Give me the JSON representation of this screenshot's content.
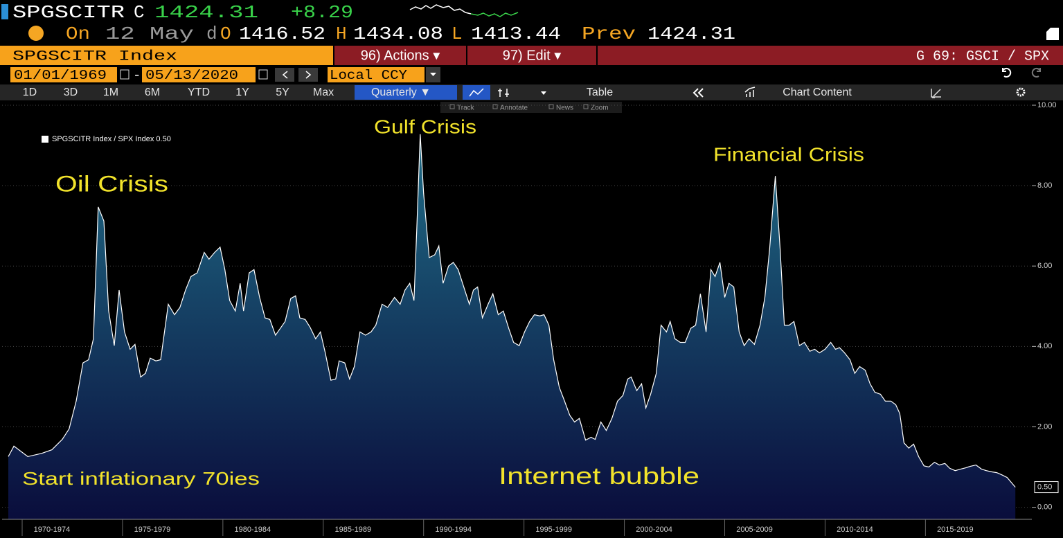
{
  "ui": {
    "ticker": "SPGSCITR",
    "c": "C",
    "last": "1424.31",
    "change": "+8.29",
    "quote": {
      "on": "On",
      "date": "12 May",
      "d": "d",
      "o_label": "O",
      "open": "1416.52",
      "h_label": "H",
      "high": "1434.08",
      "l_label": "L",
      "low": "1413.44",
      "prev_label": "Prev",
      "prev": "1424.31"
    },
    "security": "SPGSCITR Index",
    "actions": "96) Actions ▾",
    "edit": "97) Edit ▾",
    "chart_id": "G 69: GSCI / SPX",
    "start_date": "01/01/1969",
    "dash": "-",
    "end_date": "05/13/2020",
    "currency": "Local CCY",
    "periods": [
      "1D",
      "3D",
      "1M",
      "6M",
      "YTD",
      "1Y",
      "5Y",
      "Max"
    ],
    "frequency": "Quarterly ▼",
    "table": "Table",
    "chart_content": "Chart Content",
    "tools": [
      "Track",
      "Annotate",
      "News",
      "Zoom"
    ]
  },
  "chart_data": {
    "type": "area",
    "annotations": [
      "Oil Crisis",
      "Gulf Crisis",
      "Financial Crisis",
      "Start inflationary 70ies",
      "Internet bubble"
    ],
    "x": [
      1969.31,
      1969.59,
      1970.28,
      1970.97,
      1971.48,
      1972.0,
      1972.34,
      1972.69,
      1973.03,
      1973.31,
      1973.55,
      1973.79,
      1974.07,
      1974.31,
      1974.59,
      1974.83,
      1975.1,
      1975.38,
      1975.62,
      1975.9,
      1976.14,
      1976.38,
      1976.66,
      1976.9,
      1977.28,
      1977.59,
      1977.86,
      1978.14,
      1978.41,
      1978.72,
      1979.07,
      1979.31,
      1979.59,
      1979.86,
      1980.1,
      1980.34,
      1980.62,
      1980.86,
      1981.03,
      1981.31,
      1981.55,
      1981.83,
      1982.1,
      1982.34,
      1982.62,
      1982.86,
      1983.1,
      1983.38,
      1983.62,
      1983.83,
      1984.1,
      1984.34,
      1984.62,
      1984.86,
      1985.1,
      1985.38,
      1985.62,
      1985.79,
      1986.07,
      1986.31,
      1986.55,
      1986.83,
      1987.1,
      1987.38,
      1987.62,
      1987.93,
      1988.21,
      1988.55,
      1988.83,
      1989.07,
      1989.31,
      1989.52,
      1989.66,
      1989.83,
      1990.0,
      1990.28,
      1990.55,
      1990.76,
      1990.97,
      1991.24,
      1991.48,
      1991.72,
      1992.0,
      1992.28,
      1992.48,
      1992.69,
      1992.93,
      1993.21,
      1993.45,
      1993.72,
      1993.97,
      1994.24,
      1994.48,
      1994.76,
      1995.03,
      1995.28,
      1995.52,
      1995.79,
      1996.0,
      1996.24,
      1996.48,
      1996.76,
      1997.0,
      1997.28,
      1997.52,
      1997.76,
      1998.07,
      1998.34,
      1998.55,
      1998.83,
      1999.1,
      1999.38,
      1999.66,
      1999.93,
      2000.17,
      2000.34,
      2000.62,
      2000.86,
      2001.07,
      2001.31,
      2001.59,
      2001.83,
      2002.1,
      2002.28,
      2002.52,
      2002.79,
      2003.03,
      2003.31,
      2003.55,
      2003.79,
      2004.07,
      2004.31,
      2004.52,
      2004.76,
      2005.0,
      2005.21,
      2005.45,
      2005.72,
      2005.97,
      2006.21,
      2006.48,
      2006.76,
      2007.0,
      2007.24,
      2007.52,
      2007.76,
      2007.97,
      2008.21,
      2008.45,
      2008.72,
      2008.97,
      2009.24,
      2009.48,
      2009.72,
      2010.0,
      2010.28,
      2010.52,
      2010.72,
      2010.97,
      2011.24,
      2011.48,
      2011.72,
      2012.0,
      2012.24,
      2012.48,
      2012.76,
      2013.0,
      2013.28,
      2013.52,
      2013.72,
      2013.93,
      2014.17,
      2014.41,
      2014.66,
      2014.93,
      2015.17,
      2015.45,
      2015.69,
      2015.97,
      2016.21,
      2016.48,
      2016.76,
      2017.0,
      2017.24,
      2017.52,
      2017.79,
      2018.03,
      2018.31,
      2018.55,
      2018.79,
      2019.07,
      2019.48
    ],
    "series": [
      {
        "name": "SPGSCITR Index / SPX Index 0.50",
        "color": "#ffffff",
        "fill_top": "#1f6c86",
        "fill_bottom": "#0a0d3c",
        "values": [
          1.26,
          1.52,
          1.26,
          1.34,
          1.43,
          1.69,
          1.95,
          2.64,
          3.59,
          3.67,
          4.19,
          7.47,
          7.12,
          4.88,
          4.02,
          5.4,
          4.36,
          3.93,
          4.05,
          3.24,
          3.33,
          3.71,
          3.64,
          3.67,
          5.05,
          4.79,
          4.97,
          5.4,
          5.74,
          5.83,
          6.34,
          6.17,
          6.34,
          6.47,
          5.91,
          5.14,
          4.88,
          5.57,
          4.88,
          5.83,
          5.91,
          5.22,
          4.71,
          4.67,
          4.28,
          4.45,
          4.62,
          5.19,
          5.26,
          4.71,
          4.67,
          4.48,
          4.19,
          4.36,
          3.84,
          3.16,
          3.19,
          3.64,
          3.59,
          3.19,
          3.5,
          4.36,
          4.28,
          4.36,
          4.53,
          5.05,
          4.97,
          5.22,
          5.05,
          5.4,
          5.57,
          5.14,
          6.95,
          9.28,
          7.81,
          6.21,
          6.28,
          6.5,
          5.57,
          6.0,
          6.09,
          5.91,
          5.48,
          5.05,
          5.4,
          5.48,
          4.71,
          5.05,
          5.31,
          4.79,
          4.88,
          4.45,
          4.1,
          4.02,
          4.36,
          4.62,
          4.79,
          4.76,
          4.79,
          4.53,
          3.67,
          2.98,
          2.67,
          2.29,
          2.12,
          2.21,
          1.67,
          1.74,
          1.69,
          2.12,
          1.91,
          2.21,
          2.64,
          2.78,
          3.19,
          3.24,
          2.9,
          3.07,
          2.47,
          2.81,
          3.33,
          4.53,
          4.36,
          4.62,
          4.19,
          4.1,
          4.1,
          4.45,
          4.53,
          5.31,
          4.36,
          5.91,
          5.74,
          6.09,
          5.22,
          5.57,
          5.48,
          4.36,
          4.02,
          4.19,
          4.05,
          4.53,
          5.22,
          6.43,
          8.24,
          6.43,
          4.53,
          4.53,
          4.62,
          4.02,
          4.1,
          3.88,
          3.93,
          3.84,
          3.93,
          4.1,
          3.93,
          3.97,
          3.84,
          3.67,
          3.33,
          3.5,
          3.41,
          3.07,
          2.86,
          2.81,
          2.64,
          2.64,
          2.55,
          2.33,
          1.6,
          1.47,
          1.57,
          1.26,
          1.03,
          1.0,
          1.12,
          1.05,
          1.09,
          0.97,
          0.91,
          0.95,
          0.98,
          1.02,
          1.05,
          0.95,
          0.91,
          0.88,
          0.86,
          0.81,
          0.74,
          0.5
        ]
      }
    ],
    "last_value": {
      "value": 0.5,
      "label": "0.50"
    },
    "xlim": [
      1969,
      2020.3
    ],
    "xticks": [
      {
        "value": 1970,
        "label": "1970-1974"
      },
      {
        "value": 1975,
        "label": "1975-1979"
      },
      {
        "value": 1980,
        "label": "1980-1984"
      },
      {
        "value": 1985,
        "label": "1985-1989"
      },
      {
        "value": 1990,
        "label": "1990-1994"
      },
      {
        "value": 1995,
        "label": "1995-1999"
      },
      {
        "value": 2000,
        "label": "2000-2004"
      },
      {
        "value": 2005,
        "label": "2005-2009"
      },
      {
        "value": 2010,
        "label": "2010-2014"
      },
      {
        "value": 2015,
        "label": "2015-2019"
      }
    ],
    "ylim": [
      -0.3,
      10.12
    ],
    "yticks": [
      {
        "value": 0,
        "label": "0.00"
      },
      {
        "value": 2,
        "label": "2.00"
      },
      {
        "value": 4,
        "label": "4.00"
      },
      {
        "value": 6,
        "label": "6.00"
      },
      {
        "value": 8,
        "label": "8.00"
      },
      {
        "value": 10,
        "label": "10.00"
      }
    ],
    "grid": true,
    "legend": "upper-left"
  }
}
